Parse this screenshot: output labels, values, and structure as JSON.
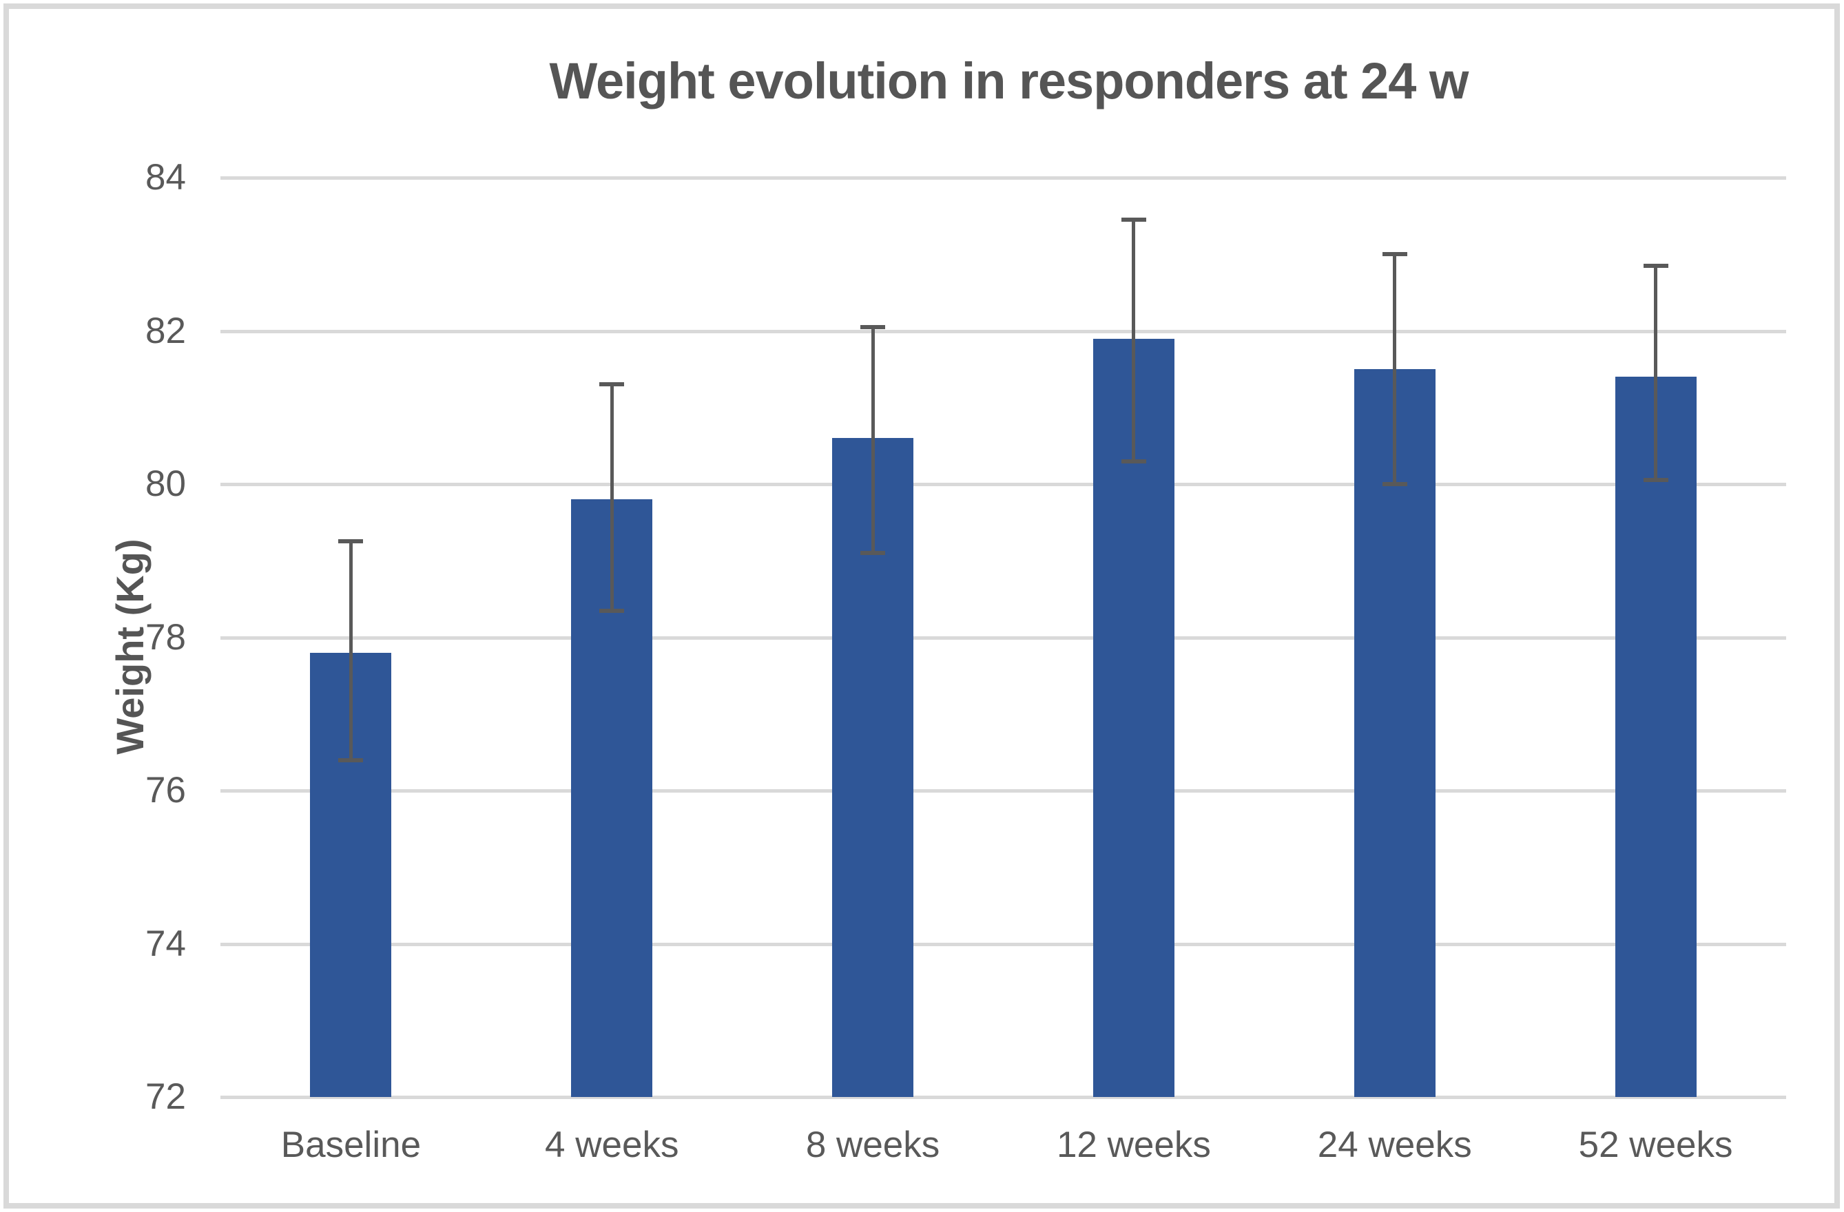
{
  "chart_data": {
    "type": "bar",
    "title": "Weight evolution in responders at 24 w",
    "xlabel": "",
    "ylabel": "Weight (Kg)",
    "categories": [
      "Baseline",
      "4 weeks",
      "8 weeks",
      "12 weeks",
      "24 weeks",
      "52 weeks"
    ],
    "series": [
      {
        "name": "Weight",
        "values": [
          77.8,
          79.8,
          80.6,
          81.9,
          81.5,
          81.4
        ],
        "error_upper": [
          79.25,
          81.3,
          82.05,
          83.45,
          83.0,
          82.85
        ],
        "error_lower": [
          76.4,
          78.35,
          79.1,
          80.3,
          80.0,
          80.05
        ]
      }
    ],
    "ylim": [
      72,
      84
    ],
    "yticks": [
      84,
      82,
      80,
      78,
      76,
      74,
      72
    ],
    "ytick_step": 2,
    "grid": true,
    "legend_position": "none",
    "colors": {
      "bar": "#2F5697",
      "error_bar": "#595959",
      "gridline": "#D9D9D9",
      "text": "#595959",
      "title_text": "#555555",
      "frame_border": "#D9D9D9",
      "background": "#FFFFFF"
    }
  }
}
